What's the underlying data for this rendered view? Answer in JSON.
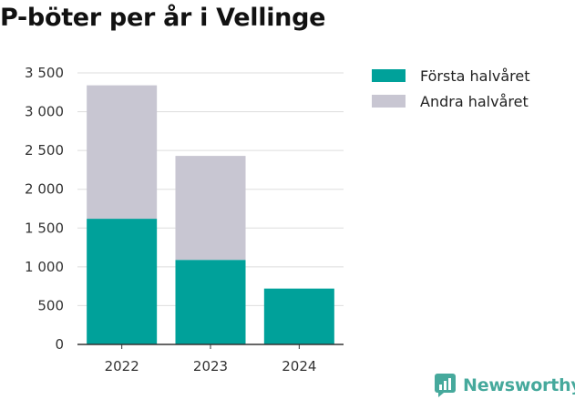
{
  "chart_data": {
    "type": "bar",
    "stacked": true,
    "title": "P-böter per år i Vellinge",
    "categories": [
      "2022",
      "2023",
      "2024"
    ],
    "series": [
      {
        "name": "Första halvåret",
        "values": [
          1620,
          1090,
          720
        ],
        "color": "#00a19a"
      },
      {
        "name": "Andra halvåret",
        "values": [
          1720,
          1340,
          0
        ],
        "color": "#c8c6d2"
      }
    ],
    "ylim": [
      0,
      3500
    ],
    "yticks": [
      0,
      500,
      1000,
      1500,
      2000,
      2500,
      3000,
      3500
    ],
    "ytick_labels": [
      "0",
      "500",
      "1 000",
      "1 500",
      "2 000",
      "2 500",
      "3 000",
      "3 500"
    ],
    "grid": true,
    "legend_position": "top-right"
  },
  "legend": {
    "items": [
      {
        "label": "Första halvåret",
        "color": "#00a19a"
      },
      {
        "label": "Andra halvåret",
        "color": "#c8c6d2"
      }
    ]
  },
  "brand": {
    "label": "Newsworthy",
    "icon": "newsworthy-logo-icon",
    "color": "#46a99c"
  }
}
